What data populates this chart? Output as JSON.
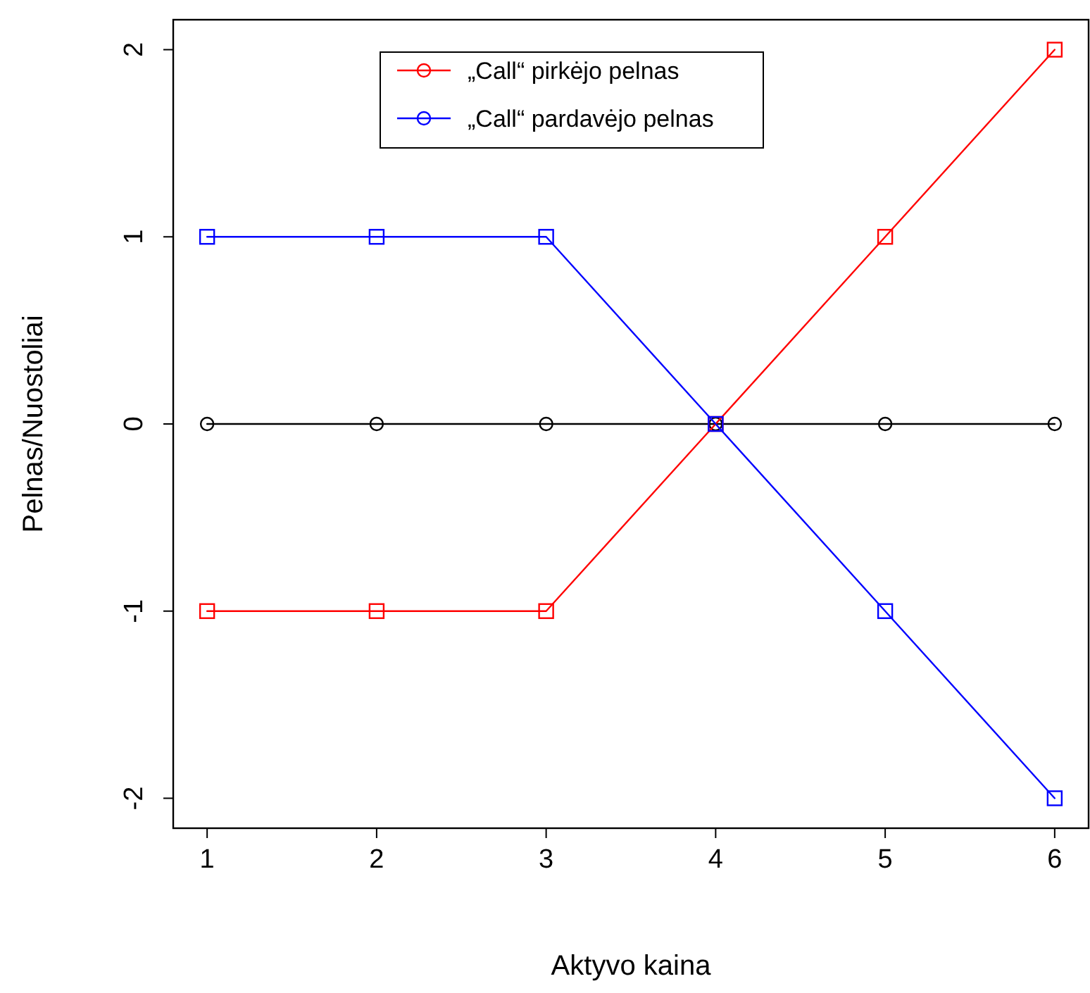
{
  "chart_data": {
    "type": "line",
    "xlabel": "Aktyvo kaina",
    "ylabel": "Pelnas/Nuostoliai",
    "x": [
      1,
      2,
      3,
      4,
      5,
      6
    ],
    "xlim": [
      0.8,
      6.2
    ],
    "ylim": [
      -2.16,
      2.16
    ],
    "xticks": [
      1,
      2,
      3,
      4,
      5,
      6
    ],
    "yticks": [
      -2,
      -1,
      0,
      1,
      2
    ],
    "grid": false,
    "legend": "top",
    "line_style": "solid",
    "series": [
      {
        "color": "#000000",
        "values": [
          0,
          0,
          0,
          0,
          0,
          0
        ],
        "marker": "circle"
      },
      {
        "name": "„Call“ pirkėjo pelnas",
        "color": "#ff0000",
        "values": [
          -1,
          -1,
          -1,
          0,
          1,
          2
        ],
        "marker": "square"
      },
      {
        "name": "„Call“ pardavėjo pelnas",
        "color": "#0000ff",
        "values": [
          1,
          1,
          1,
          0,
          -1,
          -2
        ],
        "marker": "square"
      }
    ]
  }
}
